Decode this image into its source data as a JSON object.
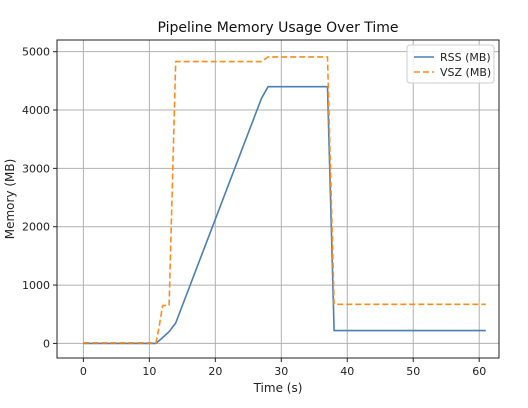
{
  "chart_data": {
    "type": "line",
    "title": "Pipeline Memory Usage Over Time",
    "xlabel": "Time (s)",
    "ylabel": "Memory (MB)",
    "xlim": [
      -4,
      63
    ],
    "ylim": [
      -250,
      5200
    ],
    "xticks": [
      0,
      10,
      20,
      30,
      40,
      50,
      60
    ],
    "yticks": [
      0,
      1000,
      2000,
      3000,
      4000,
      5000
    ],
    "grid": true,
    "legend_position": "top-right",
    "series": [
      {
        "name": "RSS (MB)",
        "color": "#4a7fb5",
        "style": "solid",
        "points": [
          [
            0,
            0
          ],
          [
            11,
            0
          ],
          [
            12,
            100
          ],
          [
            13,
            200
          ],
          [
            14,
            350
          ],
          [
            27,
            4200
          ],
          [
            28,
            4400
          ],
          [
            37,
            4400
          ],
          [
            38,
            220
          ],
          [
            61,
            220
          ]
        ]
      },
      {
        "name": "VSZ (MB)",
        "color": "#ff8c1a",
        "style": "dashed",
        "points": [
          [
            0,
            10
          ],
          [
            11,
            10
          ],
          [
            11.5,
            300
          ],
          [
            12,
            650
          ],
          [
            13,
            650
          ],
          [
            14,
            4830
          ],
          [
            27,
            4830
          ],
          [
            28,
            4910
          ],
          [
            37,
            4910
          ],
          [
            38,
            670
          ],
          [
            61,
            670
          ]
        ]
      }
    ]
  }
}
